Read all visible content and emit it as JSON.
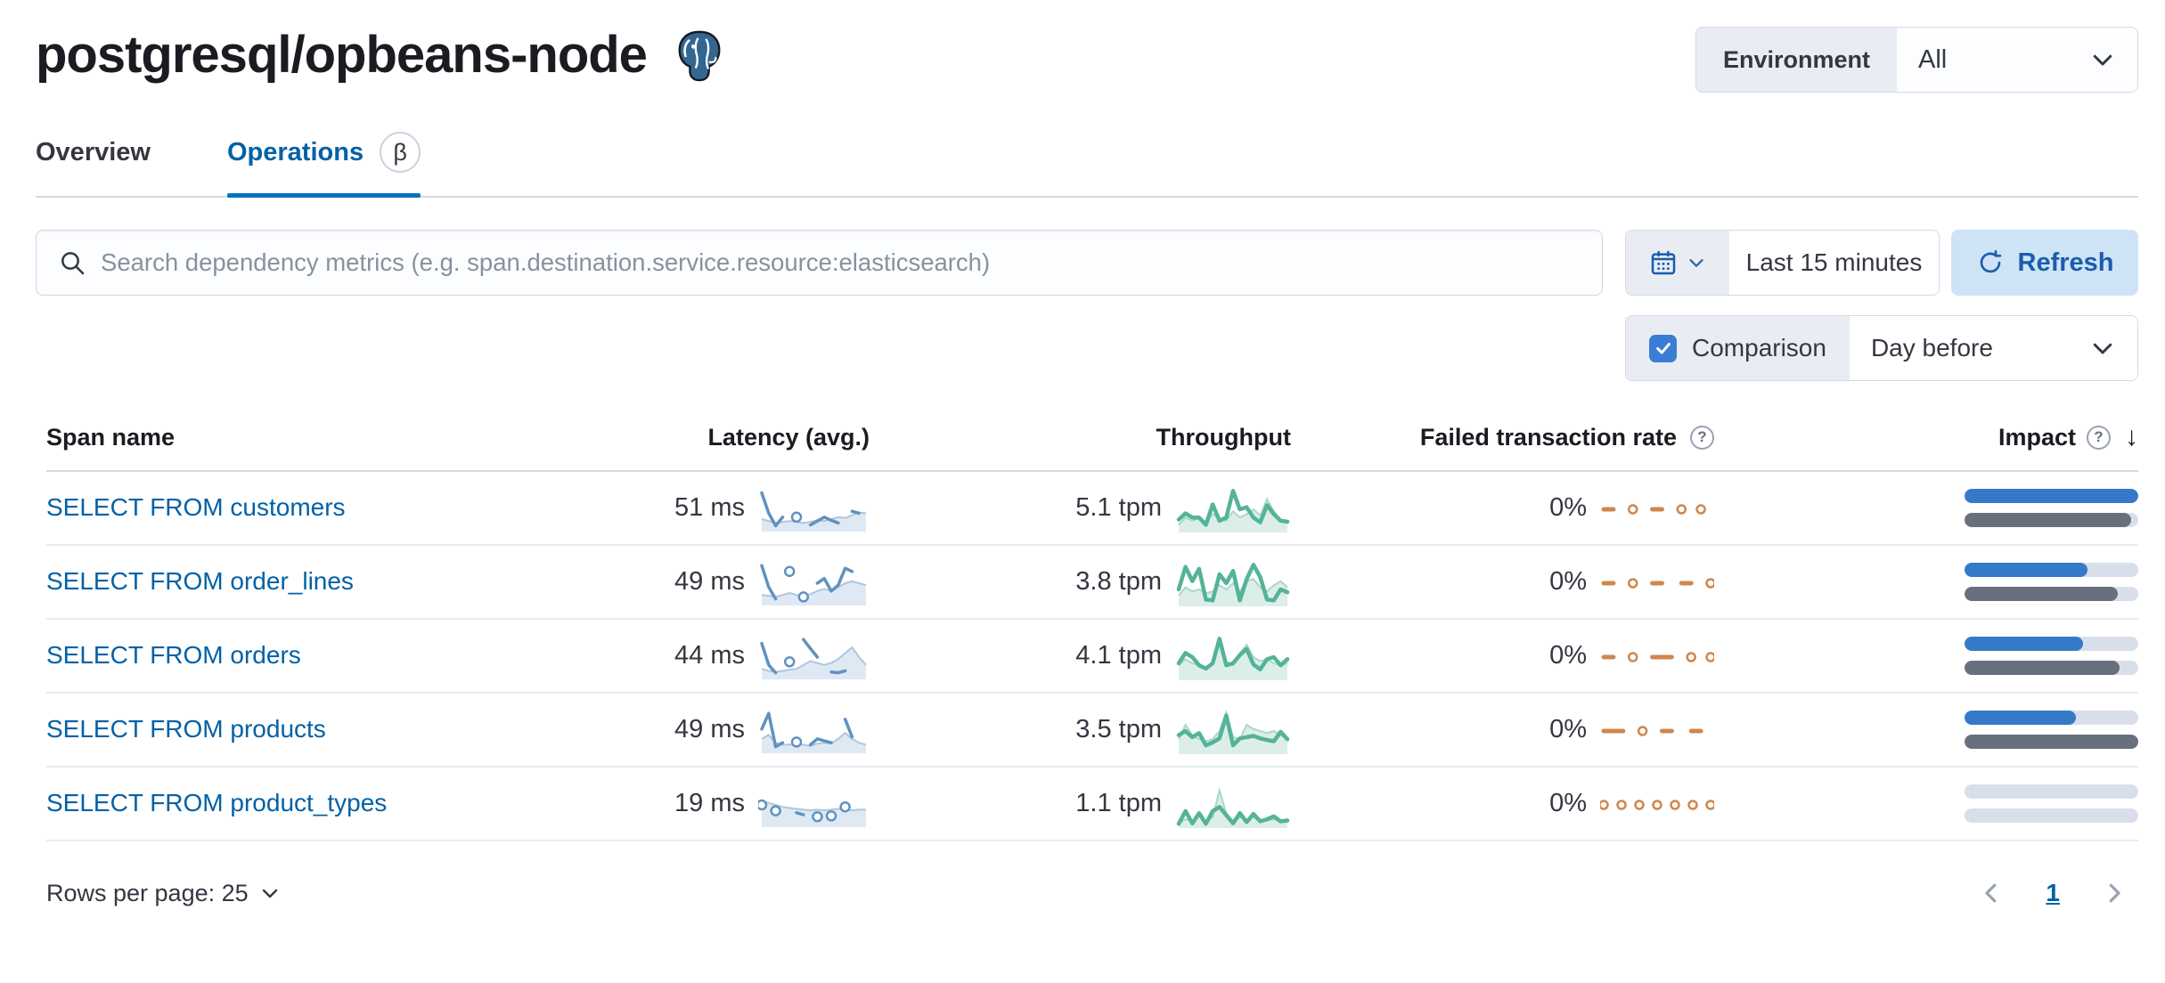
{
  "header": {
    "title": "postgresql/opbeans-node",
    "env_label": "Environment",
    "env_value": "All"
  },
  "tabs": [
    {
      "label": "Overview",
      "active": false
    },
    {
      "label": "Operations",
      "active": true,
      "badge": "β"
    }
  ],
  "toolbar": {
    "search_placeholder": "Search dependency metrics (e.g. span.destination.service.resource:elasticsearch)",
    "time_range": "Last 15 minutes",
    "refresh_label": "Refresh",
    "comparison_label": "Comparison",
    "comparison_checked": true,
    "comparison_value": "Day before"
  },
  "table": {
    "columns": [
      {
        "label": "Span name"
      },
      {
        "label": "Latency (avg.)"
      },
      {
        "label": "Throughput"
      },
      {
        "label": "Failed transaction rate",
        "help": true
      },
      {
        "label": "Impact",
        "help": true,
        "sorted": "desc"
      }
    ],
    "rows": [
      {
        "name": "SELECT FROM customers",
        "latency": "51 ms",
        "throughput": "5.1 tpm",
        "failed_rate": "0%",
        "impact": 1.0,
        "impact_prev": 0.96,
        "latency_spark": {
          "current": [
            0.92,
            0.4,
            0.08,
            0.3,
            null,
            0.3,
            null,
            0.1,
            0.2,
            0.3,
            0.22,
            0.15,
            null,
            0.45,
            0.4,
            null
          ],
          "previous": [
            0.25,
            0.2,
            0.15,
            0.18,
            0.2,
            0.18,
            0.15,
            0.18,
            0.22,
            0.2,
            0.25,
            0.3,
            0.28,
            0.35,
            0.42,
            0.4
          ]
        },
        "throughput_spark": {
          "current": [
            0.25,
            0.4,
            0.3,
            0.3,
            0.12,
            0.62,
            0.22,
            0.3,
            0.95,
            0.5,
            0.55,
            0.3,
            0.18,
            0.6,
            0.38,
            0.22,
            0.2
          ],
          "previous": [
            0.12,
            0.3,
            0.22,
            0.28,
            0.2,
            0.38,
            0.28,
            0.22,
            0.45,
            0.3,
            0.38,
            0.5,
            0.35,
            0.75,
            0.45,
            0.25,
            0.15
          ]
        },
        "failed_spark": {
          "current": [
            0.5,
            0.5,
            null,
            0.5,
            null,
            0.5,
            0.5,
            null,
            0.5,
            null,
            0.5,
            null
          ]
        }
      },
      {
        "name": "SELECT FROM order_lines",
        "latency": "49 ms",
        "throughput": "3.8 tpm",
        "failed_rate": "0%",
        "impact": 0.71,
        "impact_prev": 0.88,
        "latency_spark": {
          "current": [
            0.95,
            0.4,
            0.1,
            null,
            0.8,
            null,
            0.15,
            null,
            0.5,
            0.62,
            0.3,
            0.45,
            0.88,
            0.8,
            null,
            null
          ],
          "previous": [
            0.2,
            0.18,
            0.15,
            0.2,
            0.25,
            0.2,
            0.18,
            0.22,
            0.3,
            0.35,
            0.3,
            0.4,
            0.5,
            0.55,
            0.5,
            0.45
          ]
        },
        "throughput_spark": {
          "current": [
            0.35,
            0.9,
            0.55,
            0.85,
            0.1,
            0.08,
            0.72,
            0.5,
            0.8,
            0.08,
            0.6,
            0.95,
            0.65,
            0.1,
            0.08,
            0.35,
            0.28
          ],
          "previous": [
            0.2,
            0.4,
            0.3,
            0.35,
            0.25,
            0.3,
            0.45,
            0.35,
            0.5,
            0.3,
            0.55,
            0.6,
            0.4,
            0.3,
            0.45,
            0.55,
            0.4
          ]
        },
        "failed_spark": {
          "current": [
            0.5,
            0.5,
            null,
            0.5,
            null,
            0.5,
            0.5,
            null,
            0.5,
            0.5,
            null,
            0.5
          ]
        }
      },
      {
        "name": "SELECT FROM orders",
        "latency": "44 ms",
        "throughput": "4.1 tpm",
        "failed_rate": "0%",
        "impact": 0.68,
        "impact_prev": 0.89,
        "latency_spark": {
          "current": [
            0.85,
            0.3,
            0.1,
            null,
            0.38,
            null,
            0.95,
            0.72,
            0.5,
            null,
            0.12,
            0.1,
            0.15,
            null,
            null,
            null
          ],
          "previous": [
            0.2,
            0.15,
            0.12,
            0.15,
            0.18,
            0.2,
            0.3,
            0.4,
            0.35,
            0.3,
            0.35,
            0.45,
            0.6,
            0.75,
            0.5,
            0.3
          ]
        },
        "throughput_spark": {
          "current": [
            0.35,
            0.6,
            0.5,
            0.3,
            0.22,
            0.35,
            0.95,
            0.3,
            0.35,
            0.55,
            0.7,
            0.32,
            0.2,
            0.45,
            0.5,
            0.3,
            0.45
          ],
          "previous": [
            0.3,
            0.45,
            0.35,
            0.3,
            0.25,
            0.35,
            0.85,
            0.4,
            0.3,
            0.6,
            0.8,
            0.5,
            0.4,
            0.45,
            0.35,
            0.3,
            0.35
          ]
        },
        "failed_spark": {
          "current": [
            0.5,
            0.5,
            null,
            0.5,
            null,
            0.5,
            0.5,
            0.5,
            null,
            0.5,
            null,
            0.5
          ]
        }
      },
      {
        "name": "SELECT FROM products",
        "latency": "49 ms",
        "throughput": "3.5 tpm",
        "failed_rate": "0%",
        "impact": 0.64,
        "impact_prev": 1.0,
        "latency_spark": {
          "current": [
            0.55,
            0.95,
            0.1,
            0.2,
            null,
            0.22,
            null,
            0.15,
            0.3,
            0.25,
            0.2,
            null,
            0.8,
            0.35,
            null,
            null
          ],
          "previous": [
            0.3,
            0.4,
            0.2,
            0.15,
            0.15,
            0.18,
            0.15,
            0.12,
            0.18,
            0.2,
            0.18,
            0.3,
            0.45,
            0.3,
            0.2,
            0.15
          ]
        },
        "throughput_spark": {
          "current": [
            0.4,
            0.5,
            0.35,
            0.45,
            0.15,
            0.22,
            0.32,
            0.88,
            0.15,
            0.32,
            0.35,
            0.38,
            0.32,
            0.28,
            0.25,
            0.48,
            0.3
          ],
          "previous": [
            0.3,
            0.65,
            0.4,
            0.3,
            0.25,
            0.3,
            0.5,
            0.95,
            0.35,
            0.3,
            0.65,
            0.55,
            0.5,
            0.45,
            0.5,
            0.4,
            0.3
          ]
        },
        "failed_spark": {
          "current": [
            0.5,
            0.5,
            0.5,
            null,
            0.5,
            null,
            0.5,
            0.5,
            null,
            0.5,
            0.5,
            null
          ]
        }
      },
      {
        "name": "SELECT FROM product_types",
        "latency": "19 ms",
        "throughput": "1.1 tpm",
        "failed_rate": "0%",
        "impact": 0.0,
        "impact_prev": 0.0,
        "latency_spark": {
          "current": [
            0.5,
            null,
            0.35,
            null,
            null,
            0.3,
            0.25,
            null,
            0.2,
            null,
            0.22,
            null,
            0.45,
            null,
            null,
            null
          ],
          "previous": [
            0.6,
            0.55,
            0.5,
            0.45,
            0.42,
            0.4,
            0.38,
            0.36,
            0.38,
            0.36,
            0.38,
            0.4,
            0.38,
            0.36,
            0.38,
            0.38
          ]
        },
        "throughput_spark": {
          "current": [
            0.04,
            0.35,
            0.05,
            0.3,
            0.04,
            0.35,
            0.45,
            0.25,
            0.05,
            0.3,
            0.08,
            0.28,
            0.1,
            0.15,
            0.22,
            0.1,
            0.12
          ],
          "previous": [
            0.05,
            0.15,
            0.1,
            0.3,
            0.1,
            0.2,
            0.85,
            0.3,
            0.1,
            0.2,
            0.15,
            0.2,
            0.1,
            0.12,
            0.15,
            0.1,
            0.08
          ]
        },
        "failed_spark": {
          "current": [
            0.5,
            null,
            0.5,
            null,
            0.5,
            null,
            0.5,
            null,
            0.5,
            null,
            0.5,
            null,
            0.5
          ]
        }
      }
    ]
  },
  "footer": {
    "rows_per_page_label": "Rows per page: 25",
    "page": "1"
  },
  "colors": {
    "link": "#0061a6",
    "spark_blue": "#6092c0",
    "spark_blue_prev_line": "#aec6de",
    "spark_blue_fill": "#dfe9f3",
    "spark_green": "#54b399",
    "spark_green_prev_line": "#a9d8c9",
    "spark_green_fill": "#ddeee8",
    "spark_orange": "#d0874d",
    "impact_blue": "#3779c9",
    "impact_grey": "#69707d",
    "impact_track": "#d9dfea"
  }
}
